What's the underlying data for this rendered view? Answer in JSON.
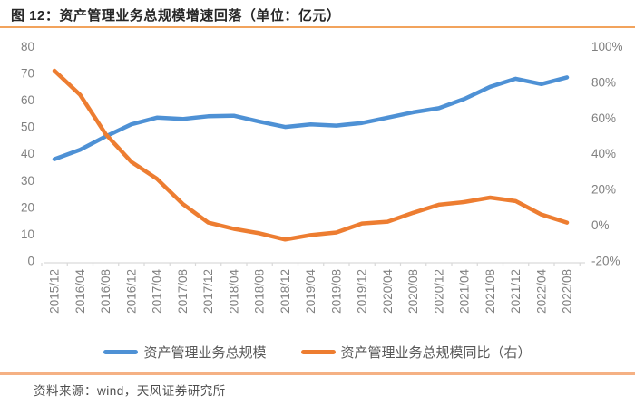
{
  "title": "图 12：资产管理业务总规模增速回落（单位：亿元）",
  "source": "资料来源：wind，天风证券研究所",
  "colors": {
    "series_blue": "#4E91D5",
    "series_orange": "#ED7D31",
    "divider_top": "#F2A35C",
    "divider_bottom": "#F5B184",
    "axis_text": "#808080",
    "axis_line": "#D9D9D9",
    "title_text": "#262626",
    "legend_text": "#595959",
    "footer_text": "#4D4D4D"
  },
  "chart_data": {
    "type": "line",
    "title": "资产管理业务总规模增速回落（单位：亿元）",
    "grid": false,
    "legend_position": "bottom",
    "categories": [
      "2015/12",
      "2016/04",
      "2016/08",
      "2016/12",
      "2017/04",
      "2017/08",
      "2017/12",
      "2018/04",
      "2018/08",
      "2018/12",
      "2019/04",
      "2019/08",
      "2019/12",
      "2020/04",
      "2020/08",
      "2020/12",
      "2021/04",
      "2021/08",
      "2021/12",
      "2022/04",
      "2022/08"
    ],
    "series": [
      {
        "name": "资产管理业务总规模",
        "axis": "left",
        "color": "#4E91D5",
        "values": [
          38,
          41.5,
          46.5,
          51,
          53.5,
          53,
          54,
          54.2,
          52,
          50,
          51,
          50.5,
          51.5,
          53.5,
          55.5,
          57,
          60.5,
          65,
          68,
          66,
          68.5
        ]
      },
      {
        "name": "资产管理业务总规模同比（右）",
        "axis": "right",
        "color": "#ED7D31",
        "values": [
          86.5,
          73,
          51,
          35.5,
          26,
          12,
          1.5,
          -2,
          -4.5,
          -8,
          -5.5,
          -4,
          1,
          2,
          7,
          11.5,
          13,
          15.5,
          13.5,
          6,
          1.5
        ]
      }
    ],
    "left_axis": {
      "min": 0,
      "max": 80,
      "step": 10,
      "ticks": [
        "0",
        "10",
        "20",
        "30",
        "40",
        "50",
        "60",
        "70",
        "80"
      ]
    },
    "right_axis": {
      "min": -20,
      "max": 100,
      "step": 20,
      "ticks": [
        "-20%",
        "0%",
        "20%",
        "40%",
        "60%",
        "80%",
        "100%"
      ]
    }
  }
}
